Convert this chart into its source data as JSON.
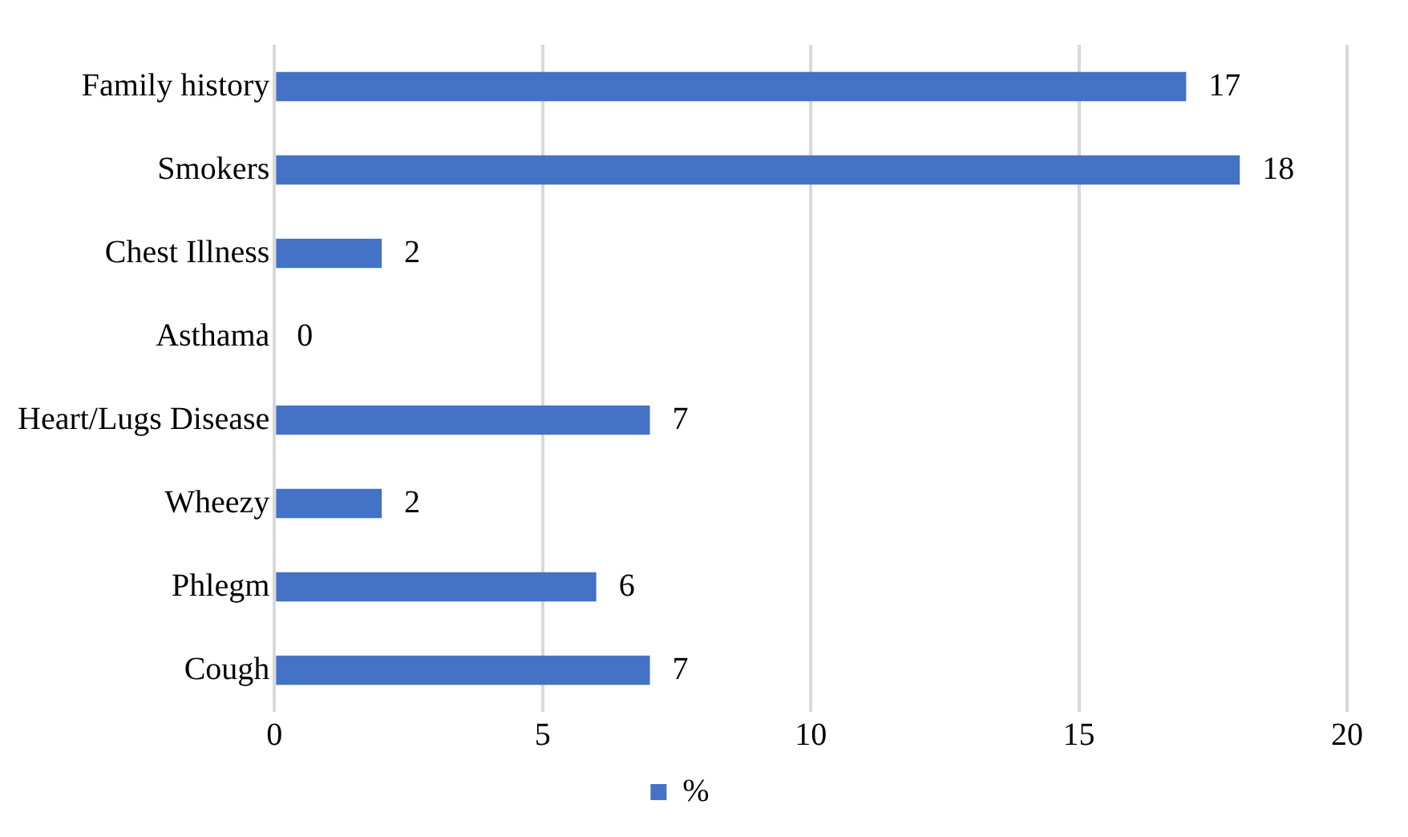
{
  "chart_data": {
    "type": "bar",
    "orientation": "horizontal",
    "categories": [
      "Family history",
      "Smokers",
      "Chest Illness",
      "Asthama",
      "Heart/Lugs Disease",
      "Wheezy",
      "Phlegm",
      "Cough"
    ],
    "series": [
      {
        "name": "%",
        "color": "#4472c4",
        "values": [
          17,
          18,
          2,
          0,
          7,
          2,
          6,
          7
        ]
      }
    ],
    "xlim": [
      0,
      20
    ],
    "xticks": [
      0,
      5,
      10,
      15,
      20
    ],
    "grid": "x",
    "legend": "bottom",
    "data_labels": true
  }
}
